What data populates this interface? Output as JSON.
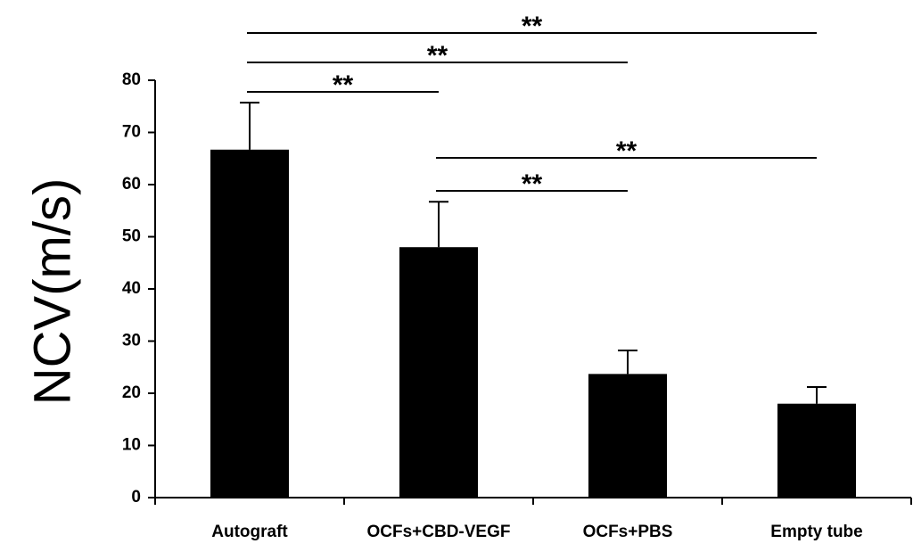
{
  "chart_data": {
    "type": "bar",
    "title": "",
    "xlabel": "",
    "ylabel": "NCV(m/s)",
    "categories": [
      "Autograft",
      "OCFs+CBD-VEGF",
      "OCFs+PBS",
      "Empty tube"
    ],
    "values": [
      66.7,
      48.0,
      23.7,
      18.0
    ],
    "errors": [
      9.0,
      8.7,
      4.5,
      3.2
    ],
    "ylim": [
      0,
      80
    ],
    "yticks": [
      0,
      10,
      20,
      30,
      40,
      50,
      60,
      70,
      80
    ],
    "ytick_labels": [
      "0",
      "10",
      "20",
      "30",
      "40",
      "50",
      "60",
      "70",
      "80"
    ],
    "bar_color": "#000000",
    "grid": false,
    "legend": "none",
    "significance": [
      {
        "from": 0,
        "to": 3,
        "label": "**"
      },
      {
        "from": 0,
        "to": 2,
        "label": "**"
      },
      {
        "from": 0,
        "to": 1,
        "label": "**"
      },
      {
        "from": 1,
        "to": 3,
        "label": "**"
      },
      {
        "from": 1,
        "to": 2,
        "label": "**"
      }
    ]
  }
}
